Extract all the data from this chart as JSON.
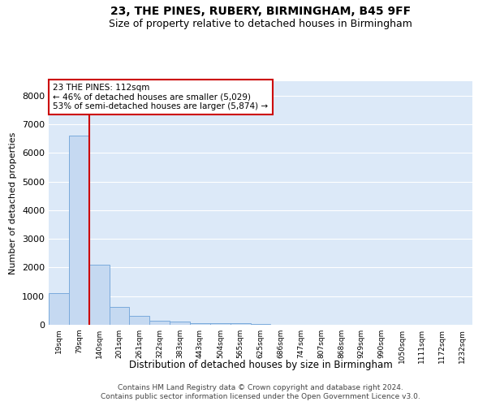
{
  "title": "23, THE PINES, RUBERY, BIRMINGHAM, B45 9FF",
  "subtitle": "Size of property relative to detached houses in Birmingham",
  "xlabel": "Distribution of detached houses by size in Birmingham",
  "ylabel": "Number of detached properties",
  "footnote1": "Contains HM Land Registry data © Crown copyright and database right 2024.",
  "footnote2": "Contains public sector information licensed under the Open Government Licence v3.0.",
  "categories": [
    "19sqm",
    "79sqm",
    "140sqm",
    "201sqm",
    "261sqm",
    "322sqm",
    "383sqm",
    "443sqm",
    "504sqm",
    "565sqm",
    "625sqm",
    "686sqm",
    "747sqm",
    "807sqm",
    "868sqm",
    "929sqm",
    "990sqm",
    "1050sqm",
    "1111sqm",
    "1172sqm",
    "1232sqm"
  ],
  "values": [
    1100,
    6600,
    2100,
    620,
    310,
    150,
    100,
    65,
    50,
    45,
    30,
    0,
    0,
    0,
    0,
    0,
    0,
    0,
    0,
    0,
    0
  ],
  "bar_color": "#c5d9f1",
  "bar_edge_color": "#7aaadc",
  "property_line_x": 1.5,
  "property_label": "23 THE PINES: 112sqm",
  "annotation_line1": "← 46% of detached houses are smaller (5,029)",
  "annotation_line2": "53% of semi-detached houses are larger (5,874) →",
  "annotation_box_color": "#ffffff",
  "annotation_box_edge": "#cc0000",
  "property_line_color": "#cc0000",
  "ylim": [
    0,
    8500
  ],
  "yticks": [
    0,
    1000,
    2000,
    3000,
    4000,
    5000,
    6000,
    7000,
    8000
  ],
  "background_color": "#dce9f8",
  "grid_color": "#ffffff",
  "title_fontsize": 10,
  "subtitle_fontsize": 9
}
